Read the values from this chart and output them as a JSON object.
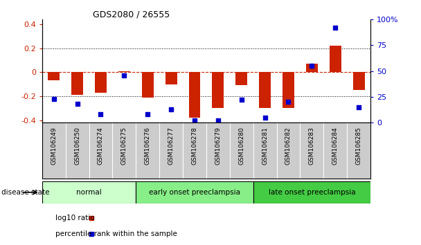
{
  "title": "GDS2080 / 26555",
  "samples": [
    "GSM106249",
    "GSM106250",
    "GSM106274",
    "GSM106275",
    "GSM106276",
    "GSM106277",
    "GSM106278",
    "GSM106279",
    "GSM106280",
    "GSM106281",
    "GSM106282",
    "GSM106283",
    "GSM106284",
    "GSM106285"
  ],
  "log10_ratio": [
    -0.07,
    -0.19,
    -0.17,
    0.01,
    -0.21,
    -0.1,
    -0.38,
    -0.3,
    -0.11,
    -0.3,
    -0.3,
    0.07,
    0.22,
    -0.15
  ],
  "percentile_rank": [
    23,
    18,
    8,
    46,
    8,
    13,
    2,
    2,
    22,
    5,
    20,
    55,
    92,
    15
  ],
  "bar_color": "#cc2200",
  "dot_color": "#0000cc",
  "ylim_left": [
    -0.42,
    0.44
  ],
  "ylim_right": [
    0,
    100
  ],
  "yticks_left": [
    -0.4,
    -0.2,
    0,
    0.2,
    0.4
  ],
  "ytick_labels_left": [
    "-0.4",
    "-0.2",
    "0",
    "0.2",
    "0.4"
  ],
  "yticks_right": [
    0,
    25,
    50,
    75,
    100
  ],
  "ytick_labels_right": [
    "0",
    "25",
    "50",
    "75",
    "100%"
  ],
  "groups": [
    {
      "label": "normal",
      "start": 0,
      "end": 4,
      "color": "#ccffcc"
    },
    {
      "label": "early onset preeclampsia",
      "start": 4,
      "end": 9,
      "color": "#88ee88"
    },
    {
      "label": "late onset preeclampsia",
      "start": 9,
      "end": 14,
      "color": "#44cc44"
    }
  ],
  "legend_items": [
    {
      "label": "log10 ratio",
      "color": "#cc2200"
    },
    {
      "label": "percentile rank within the sample",
      "color": "#0000cc"
    }
  ],
  "disease_state_label": "disease state",
  "zero_line_color": "#cc2200",
  "grid_color": "#000000",
  "background_color": "#ffffff",
  "plot_bg_color": "#ffffff",
  "bar_width": 0.5,
  "tick_label_bg": "#cccccc"
}
